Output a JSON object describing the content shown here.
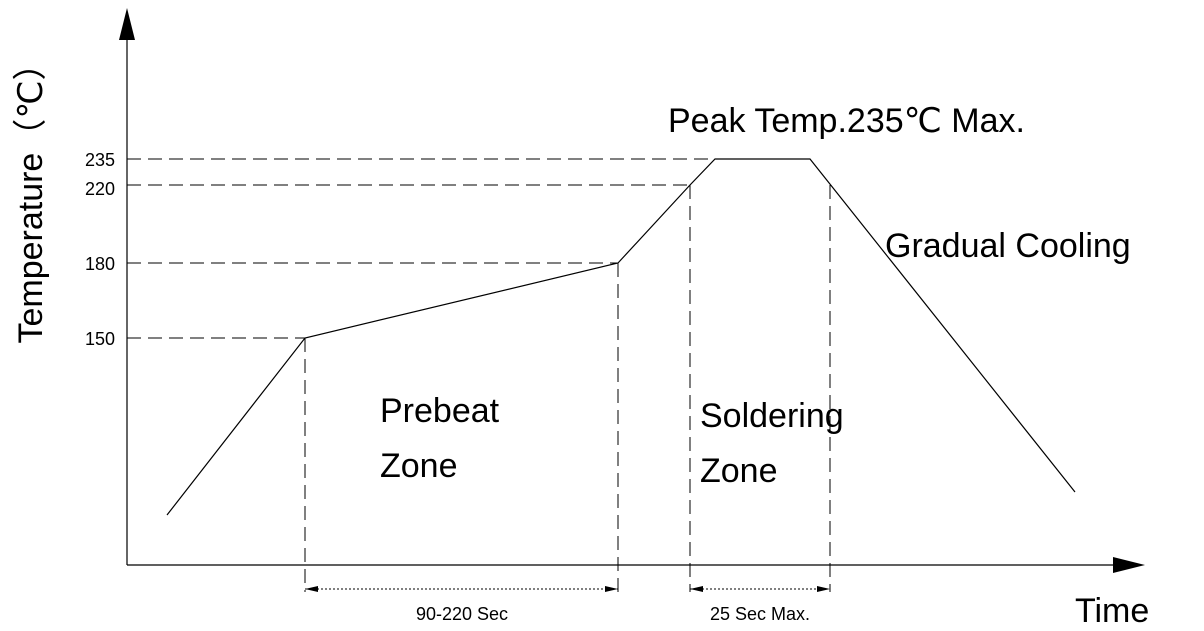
{
  "axes": {
    "y_label": "Temperature（℃）",
    "x_label": "Time"
  },
  "levels": [
    235,
    220,
    180,
    150
  ],
  "annotations": {
    "peak": "Peak Temp.235℃ Max.",
    "cooling": "Gradual Cooling",
    "preheat": [
      "Prebeat",
      "Zone"
    ],
    "soldering": [
      "Soldering",
      "Zone"
    ]
  },
  "durations": {
    "preheat": "90-220 Sec",
    "soldering": "25 Sec Max."
  }
}
